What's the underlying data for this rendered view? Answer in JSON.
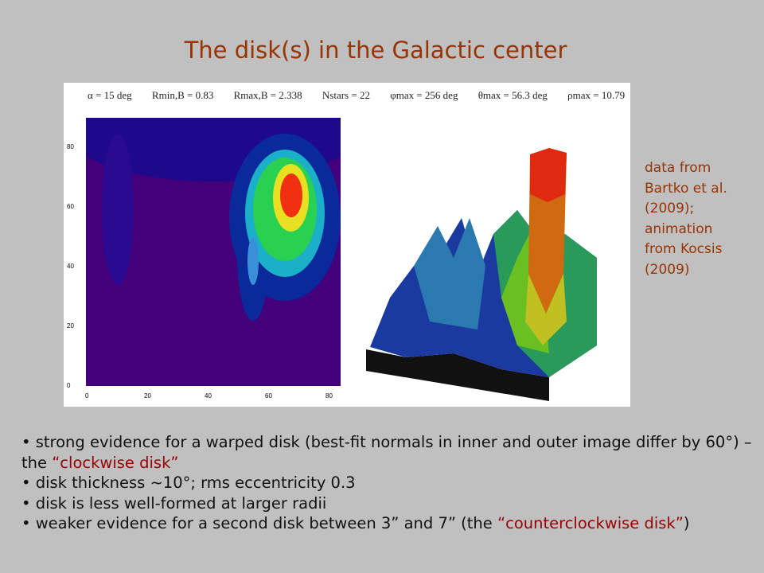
{
  "title": "The disk(s) in the Galactic center",
  "figure": {
    "params": [
      "α = 15 deg",
      "Rmin,B = 0.83",
      "Rmax,B = 2.338",
      "Nstars = 22",
      "φmax = 256 deg",
      "θmax = 56.3 deg",
      "ρmax = 10.79"
    ],
    "x_ticks": [
      "0",
      "20",
      "40",
      "60",
      "80"
    ],
    "y_ticks": [
      "0",
      "20",
      "40",
      "60",
      "80"
    ]
  },
  "side_note": [
    "data from",
    "Bartko et al.",
    "(2009);",
    "animation",
    "from Kocsis",
    "(2009)"
  ],
  "bullets": [
    {
      "pre": "• strong evidence for a warped disk (best-fit normals in inner and outer image differ by 60°) – the ",
      "hl": "“clockwise disk”",
      "post": ""
    },
    {
      "pre": "• disk thickness ~10°; rms eccentricity 0.3",
      "hl": "",
      "post": ""
    },
    {
      "pre": "• disk is less well-formed at larger radii",
      "hl": "",
      "post": ""
    },
    {
      "pre": "• weaker evidence for a second disk between 3” and 7” (the ",
      "hl": "“counterclockwise disk”",
      "post": ")"
    }
  ],
  "colors": {
    "title": "#993300",
    "highlight": "#990000",
    "background": "#c0c0c0"
  }
}
